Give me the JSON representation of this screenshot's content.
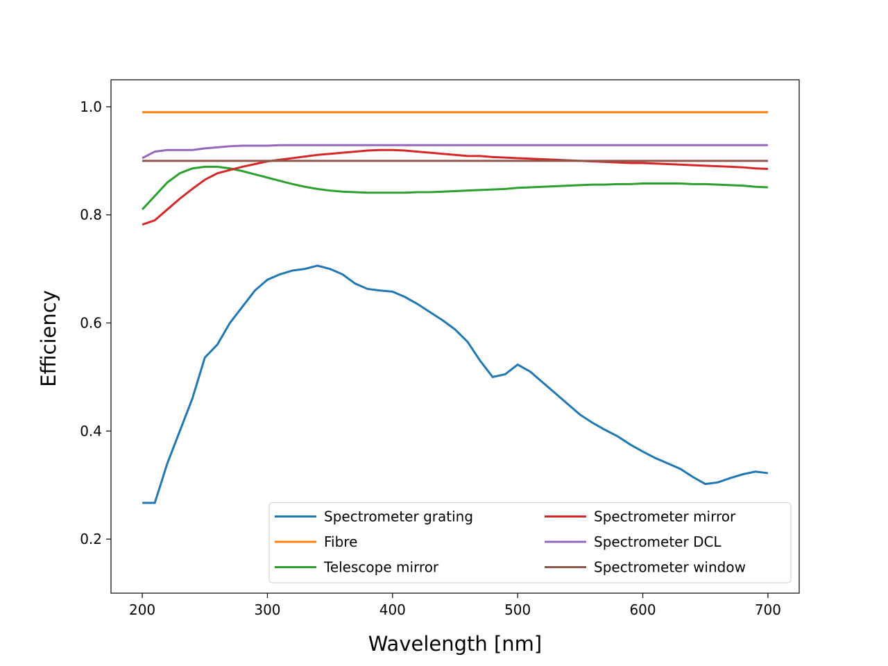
{
  "chart_data": {
    "type": "line",
    "xlabel": "Wavelength [nm]",
    "ylabel": "Efficiency",
    "x": [
      200,
      210,
      220,
      230,
      240,
      250,
      260,
      270,
      280,
      290,
      300,
      310,
      320,
      330,
      340,
      350,
      360,
      370,
      380,
      390,
      400,
      410,
      420,
      430,
      440,
      450,
      460,
      470,
      480,
      490,
      500,
      510,
      520,
      530,
      540,
      550,
      560,
      570,
      580,
      590,
      600,
      610,
      620,
      630,
      640,
      650,
      660,
      670,
      680,
      690,
      700
    ],
    "series": [
      {
        "name": "Spectrometer grating",
        "color": "#1f77b4",
        "values": [
          0.267,
          0.267,
          0.34,
          0.4,
          0.46,
          0.536,
          0.56,
          0.6,
          0.63,
          0.66,
          0.68,
          0.69,
          0.697,
          0.7,
          0.706,
          0.7,
          0.69,
          0.673,
          0.663,
          0.66,
          0.658,
          0.648,
          0.635,
          0.62,
          0.605,
          0.588,
          0.565,
          0.53,
          0.5,
          0.505,
          0.523,
          0.51,
          0.49,
          0.47,
          0.45,
          0.43,
          0.415,
          0.402,
          0.39,
          0.375,
          0.362,
          0.35,
          0.34,
          0.33,
          0.315,
          0.302,
          0.305,
          0.313,
          0.32,
          0.325,
          0.322
        ]
      },
      {
        "name": "Fibre",
        "color": "#ff7f0e",
        "values": [
          0.99,
          0.99,
          0.99,
          0.99,
          0.99,
          0.99,
          0.99,
          0.99,
          0.99,
          0.99,
          0.99,
          0.99,
          0.99,
          0.99,
          0.99,
          0.99,
          0.99,
          0.99,
          0.99,
          0.99,
          0.99,
          0.99,
          0.99,
          0.99,
          0.99,
          0.99,
          0.99,
          0.99,
          0.99,
          0.99,
          0.99,
          0.99,
          0.99,
          0.99,
          0.99,
          0.99,
          0.99,
          0.99,
          0.99,
          0.99,
          0.99,
          0.99,
          0.99,
          0.99,
          0.99,
          0.99,
          0.99,
          0.99,
          0.99,
          0.99,
          0.99
        ]
      },
      {
        "name": "Telescope mirror",
        "color": "#2ca02c",
        "values": [
          0.81,
          0.835,
          0.86,
          0.877,
          0.886,
          0.889,
          0.889,
          0.886,
          0.881,
          0.875,
          0.869,
          0.863,
          0.857,
          0.852,
          0.848,
          0.845,
          0.843,
          0.842,
          0.841,
          0.841,
          0.841,
          0.841,
          0.842,
          0.842,
          0.843,
          0.844,
          0.845,
          0.846,
          0.847,
          0.848,
          0.85,
          0.851,
          0.852,
          0.853,
          0.854,
          0.855,
          0.856,
          0.856,
          0.857,
          0.857,
          0.858,
          0.858,
          0.858,
          0.858,
          0.857,
          0.857,
          0.856,
          0.855,
          0.854,
          0.852,
          0.851
        ]
      },
      {
        "name": "Spectrometer mirror",
        "color": "#d62728",
        "values": [
          0.782,
          0.79,
          0.81,
          0.83,
          0.848,
          0.865,
          0.877,
          0.883,
          0.889,
          0.894,
          0.899,
          0.902,
          0.905,
          0.908,
          0.911,
          0.913,
          0.915,
          0.917,
          0.919,
          0.92,
          0.92,
          0.919,
          0.917,
          0.915,
          0.913,
          0.911,
          0.909,
          0.909,
          0.907,
          0.906,
          0.905,
          0.904,
          0.903,
          0.902,
          0.901,
          0.9,
          0.899,
          0.898,
          0.897,
          0.896,
          0.896,
          0.895,
          0.894,
          0.893,
          0.892,
          0.891,
          0.89,
          0.889,
          0.888,
          0.886,
          0.885
        ]
      },
      {
        "name": "Spectrometer DCL",
        "color": "#9467bd",
        "values": [
          0.905,
          0.917,
          0.92,
          0.92,
          0.92,
          0.923,
          0.925,
          0.927,
          0.928,
          0.928,
          0.928,
          0.929,
          0.929,
          0.929,
          0.929,
          0.929,
          0.929,
          0.929,
          0.929,
          0.929,
          0.929,
          0.929,
          0.929,
          0.929,
          0.929,
          0.929,
          0.929,
          0.929,
          0.929,
          0.929,
          0.929,
          0.929,
          0.929,
          0.929,
          0.929,
          0.929,
          0.929,
          0.929,
          0.929,
          0.929,
          0.929,
          0.929,
          0.929,
          0.929,
          0.929,
          0.929,
          0.929,
          0.929,
          0.929,
          0.929,
          0.929
        ]
      },
      {
        "name": "Spectrometer window",
        "color": "#8c564b",
        "values": [
          0.9,
          0.9,
          0.9,
          0.9,
          0.9,
          0.9,
          0.9,
          0.9,
          0.9,
          0.9,
          0.9,
          0.9,
          0.9,
          0.9,
          0.9,
          0.9,
          0.9,
          0.9,
          0.9,
          0.9,
          0.9,
          0.9,
          0.9,
          0.9,
          0.9,
          0.9,
          0.9,
          0.9,
          0.9,
          0.9,
          0.9,
          0.9,
          0.9,
          0.9,
          0.9,
          0.9,
          0.9,
          0.9,
          0.9,
          0.9,
          0.9,
          0.9,
          0.9,
          0.9,
          0.9,
          0.9,
          0.9,
          0.9,
          0.9,
          0.9,
          0.9
        ]
      }
    ],
    "xlim": [
      175,
      725
    ],
    "xticks": [
      200,
      300,
      400,
      500,
      600,
      700
    ],
    "ylim": [
      0.1,
      1.05
    ],
    "yticks": [
      0.2,
      0.4,
      0.6,
      0.8,
      {
        "value": 1,
        "label": "1.0"
      }
    ],
    "grid": false,
    "legend": "lower right",
    "legend_columns": 2
  }
}
